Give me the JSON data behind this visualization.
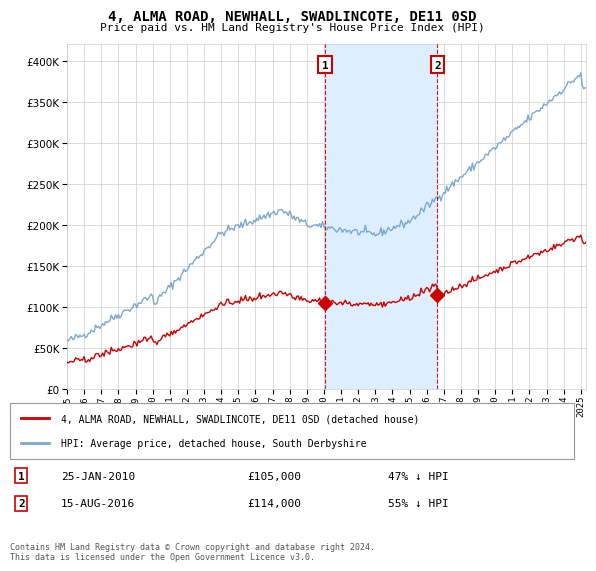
{
  "title": "4, ALMA ROAD, NEWHALL, SWADLINCOTE, DE11 0SD",
  "subtitle": "Price paid vs. HM Land Registry's House Price Index (HPI)",
  "hpi_label": "HPI: Average price, detached house, South Derbyshire",
  "property_label": "4, ALMA ROAD, NEWHALL, SWADLINCOTE, DE11 0SD (detached house)",
  "sale1_date": "25-JAN-2010",
  "sale1_price": "£105,000",
  "sale1_hpi": "47% ↓ HPI",
  "sale1_year": 2010.07,
  "sale1_value": 105000,
  "sale2_date": "15-AUG-2016",
  "sale2_price": "£114,000",
  "sale2_hpi": "55% ↓ HPI",
  "sale2_year": 2016.62,
  "sale2_value": 114000,
  "footer": "Contains HM Land Registry data © Crown copyright and database right 2024.\nThis data is licensed under the Open Government Licence v3.0.",
  "hpi_color": "#7aa8d2",
  "property_color": "#cc0000",
  "shade_color": "#ddeeff",
  "ylim": [
    0,
    420000
  ],
  "yticks": [
    0,
    50000,
    100000,
    150000,
    200000,
    250000,
    300000,
    350000,
    400000
  ],
  "xlim_start": 1995.5,
  "xlim_end": 2025.3
}
